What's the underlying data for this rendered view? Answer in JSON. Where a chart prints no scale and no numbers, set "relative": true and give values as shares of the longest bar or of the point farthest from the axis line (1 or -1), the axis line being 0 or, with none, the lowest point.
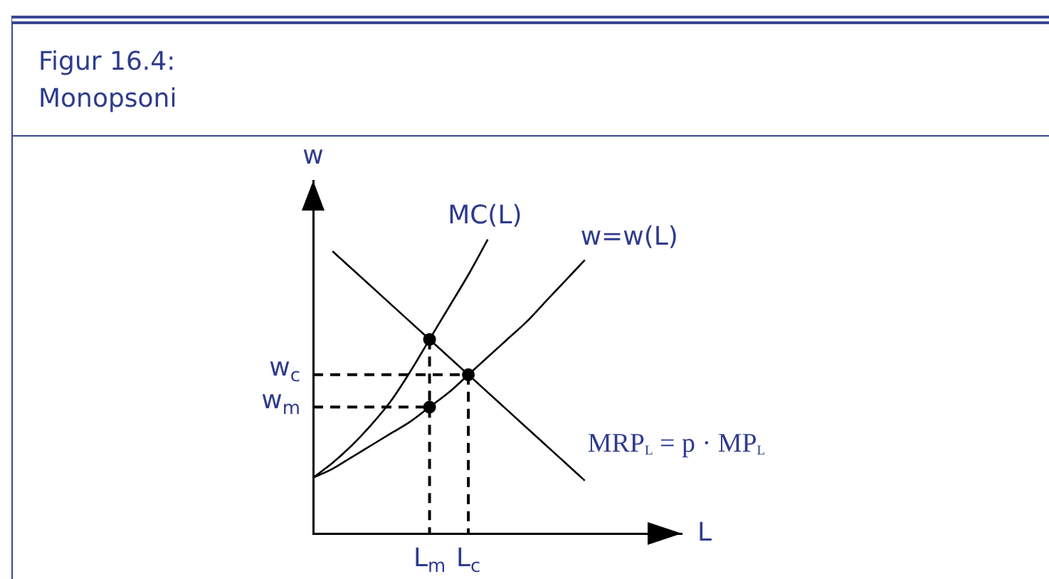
{
  "chart_data": {
    "type": "line",
    "title": "Figur 16.4:",
    "subtitle": "Monopsoni",
    "xlabel": "L",
    "ylabel": "w",
    "relative": true,
    "tick_labels": "x",
    "categories": [
      null,
      null,
      null,
      null,
      null,
      null,
      "L$_{m}$",
      null,
      "L$_{c}$",
      null,
      null,
      null,
      null,
      null,
      null,
      null,
      null,
      null,
      null,
      null
    ],
    "series": [
      {
        "name": "MC(L)",
        "color": "#000000",
        "values": [
          0.19,
          0.24,
          0.3,
          0.37,
          0.45,
          0.55,
          0.66,
          0.77,
          0.88,
          1,
          null,
          null,
          null,
          null,
          null,
          null,
          null,
          null,
          null,
          null
        ]
      },
      {
        "name": "w=w(L)",
        "color": "#000000",
        "values": [
          0.19,
          0.22,
          0.26,
          0.3,
          0.34,
          0.38,
          0.43,
          0.48,
          0.54,
          0.6,
          0.66,
          0.72,
          0.79,
          0.86,
          0.93,
          null,
          null,
          null,
          null,
          null
        ]
      },
      {
        "name": "MRP$_{L}$ = p · MP$_{L}$",
        "color": "#000000",
        "values": [
          null,
          0.96,
          0.9,
          0.84,
          0.78,
          0.72,
          0.66,
          0.6,
          0.54,
          0.48,
          0.42,
          0.36,
          0.3,
          0.24,
          0.18,
          null,
          null,
          null,
          null,
          null
        ]
      },
      {
        "name": "w$_{c}$",
        "color": "#000000",
        "line_style": "dashed",
        "values": [
          0.54,
          0.54,
          0.54,
          0.54,
          0.54,
          0.54,
          0.54,
          0.54,
          0.54,
          null,
          null,
          null,
          null,
          null,
          null,
          null,
          null,
          null,
          null,
          null
        ]
      },
      {
        "name": "w$_{m}$",
        "color": "#000000",
        "line_style": "dashed",
        "values": [
          0.43,
          0.43,
          0.43,
          0.43,
          0.43,
          0.43,
          0.43,
          null,
          null,
          null,
          null,
          null,
          null,
          null,
          null,
          null,
          null,
          null,
          null,
          null
        ]
      },
      {
        "color": "#000000",
        "line_style": "dashed",
        "x": [
          "L$_{c}$",
          "L$_{c}$"
        ],
        "values": [
          0.54,
          0
        ]
      },
      {
        "color": "#000000",
        "line_style": "dashed",
        "x": [
          "L$_{m}$",
          "L$_{m}$"
        ],
        "values": [
          0.66,
          0
        ]
      },
      {
        "type": "scatter",
        "color": "#000000",
        "marker": "circle",
        "x": [
          "L$_{m}$",
          "L$_{c}$",
          "L$_{m}$"
        ],
        "values": [
          0.66,
          0.54,
          0.43
        ]
      }
    ]
  }
}
